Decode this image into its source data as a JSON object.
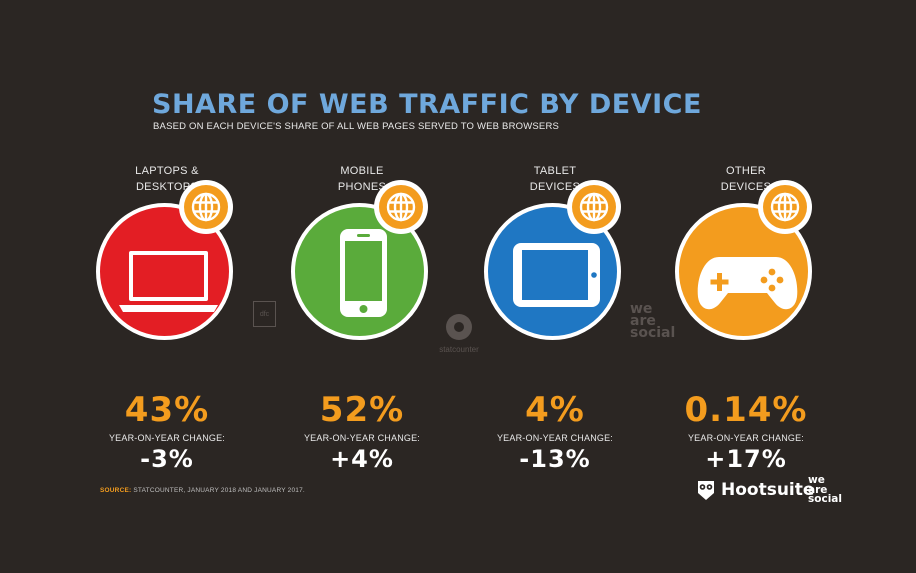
{
  "title": "SHARE OF WEB TRAFFIC BY DEVICE",
  "subtitle": "BASED ON EACH DEVICE'S SHARE OF ALL WEB PAGES SERVED TO WEB BROWSERS",
  "yoy_label": "YEAR-ON-YEAR CHANGE:",
  "chart_data": {
    "type": "table",
    "title": "SHARE OF WEB TRAFFIC BY DEVICE",
    "subtitle": "BASED ON EACH DEVICE'S SHARE OF ALL WEB PAGES SERVED TO WEB BROWSERS",
    "categories": [
      [
        "LAPTOPS &",
        "DESKTOPS"
      ],
      [
        "MOBILE",
        "PHONES"
      ],
      [
        "TABLET",
        "DEVICES"
      ],
      [
        "OTHER",
        "DEVICES"
      ]
    ],
    "series": [
      {
        "name": "Share of web traffic",
        "values": [
          "43%",
          "52%",
          "4%",
          "0.14%"
        ]
      },
      {
        "name": "YEAR-ON-YEAR CHANGE:",
        "values": [
          "-3%",
          "+4%",
          "-13%",
          "+17%"
        ]
      }
    ]
  },
  "devices": [
    {
      "icon": "laptop-icon",
      "color": "#e31e24"
    },
    {
      "icon": "mobile-phone-icon",
      "color": "#5aab3b"
    },
    {
      "icon": "tablet-icon",
      "color": "#1f77c3"
    },
    {
      "icon": "gamepad-icon",
      "color": "#f39c1e"
    }
  ],
  "source": {
    "key": "SOURCE:",
    "text": "STATCOUNTER, JANUARY 2018 AND JANUARY 2017."
  },
  "logos": {
    "hootsuite": "Hootsuite",
    "we_are_social": [
      "we",
      "are",
      "social"
    ]
  },
  "watermarks": {
    "statcounter": "statcounter",
    "we_are_social": [
      "we",
      "are",
      "social"
    ],
    "box": "dfc"
  }
}
